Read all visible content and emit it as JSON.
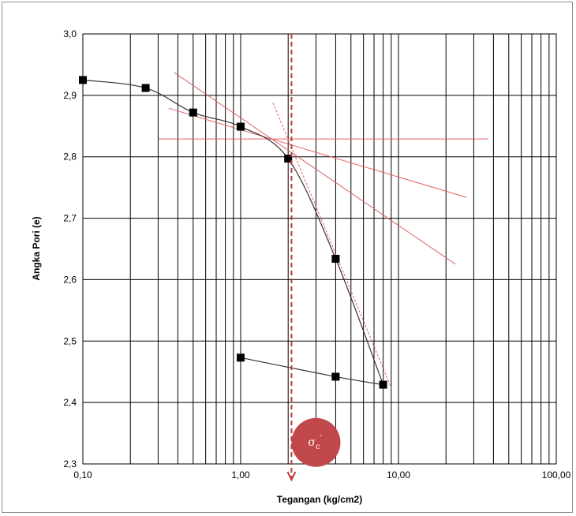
{
  "chart_data": {
    "type": "scatter",
    "title": "",
    "xlabel": "Tegangan (kg/cm2)",
    "ylabel": "Angka Pori (e)",
    "xscale": "log",
    "xlim": [
      0.1,
      100
    ],
    "ylim": [
      2.3,
      3.0
    ],
    "x_ticks": [
      "0,10",
      "1,00",
      "10,00",
      "100,00"
    ],
    "y_ticks": [
      "2,3",
      "2,4",
      "2,5",
      "2,6",
      "2,7",
      "2,8",
      "2,9",
      "3,0"
    ],
    "grid": true,
    "series": [
      {
        "role": "loading",
        "color": "#000000",
        "marker": "square",
        "points": [
          [
            0.1,
            2.925
          ],
          [
            0.25,
            2.912
          ],
          [
            0.5,
            2.872
          ],
          [
            1.0,
            2.849
          ],
          [
            2.0,
            2.797
          ],
          [
            4.0,
            2.634
          ],
          [
            8.0,
            2.429
          ]
        ]
      },
      {
        "role": "unloading",
        "color": "#000000",
        "marker": "square",
        "points": [
          [
            8.0,
            2.429
          ],
          [
            4.0,
            2.442
          ],
          [
            1.0,
            2.473
          ]
        ]
      }
    ],
    "construction_lines": {
      "color": "#e06060",
      "lines": [
        {
          "kind": "horizontal",
          "points": [
            [
              0.3,
              2.829
            ],
            [
              37,
              2.829
            ]
          ]
        },
        {
          "kind": "tangent",
          "points": [
            [
              0.35,
              2.879
            ],
            [
              27,
              2.734
            ]
          ]
        },
        {
          "kind": "bisector",
          "points": [
            [
              0.38,
              2.937
            ],
            [
              23,
              2.625
            ]
          ]
        },
        {
          "kind": "virgin-extension",
          "style": "dashed",
          "points": [
            [
              1.6,
              2.888
            ],
            [
              9.0,
              2.424
            ]
          ]
        }
      ]
    },
    "marker_line": {
      "x": 2.1,
      "color": "#c0393b",
      "style": "dashed"
    },
    "annotation": {
      "text": "σc′",
      "sigma": "σ",
      "sub": "c",
      "prime": "′",
      "color": "#c0474a",
      "x": 3.0,
      "y": 2.335
    }
  }
}
